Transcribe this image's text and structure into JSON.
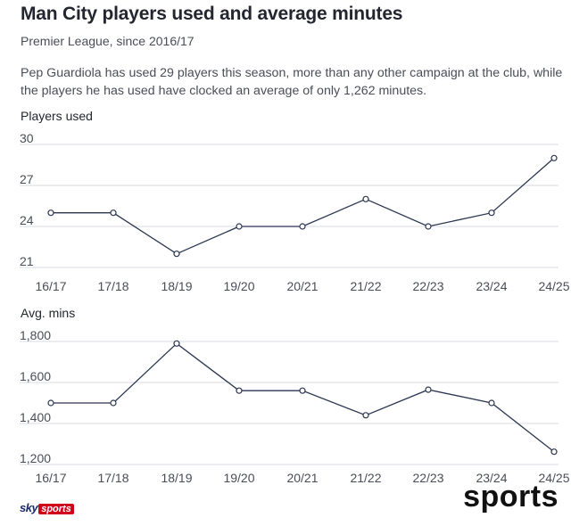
{
  "header": {
    "title": "Man City players used and average minutes",
    "subtitle": "Premier League, since 2016/17",
    "description": "Pep Guardiola has used 29 players this season, more than any other campaign at the club, while the players he has used have clocked an average of only 1,262 minutes."
  },
  "branding": {
    "sky": "sky",
    "sports_badge": "sports",
    "watermark": "sports"
  },
  "colors": {
    "line": "#2a3550",
    "badge": "#d0021b"
  },
  "chart_data": [
    {
      "type": "line",
      "title": "Players used",
      "categories": [
        "16/17",
        "17/18",
        "18/19",
        "19/20",
        "20/21",
        "21/22",
        "22/23",
        "23/24",
        "24/25"
      ],
      "series": [
        {
          "values": [
            25,
            25,
            22,
            24,
            24,
            26,
            24,
            25,
            29
          ]
        }
      ],
      "yticks": [
        "30",
        "27",
        "24",
        "21"
      ],
      "ylim": [
        21,
        30
      ],
      "grid": true,
      "legend": "none"
    },
    {
      "type": "line",
      "title": "Avg. mins",
      "categories": [
        "16/17",
        "17/18",
        "18/19",
        "19/20",
        "20/21",
        "21/22",
        "22/23",
        "23/24",
        "24/25"
      ],
      "series": [
        {
          "values": [
            1500,
            1500,
            1790,
            1560,
            1560,
            1440,
            1565,
            1500,
            1262
          ]
        }
      ],
      "yticks": [
        "1,800",
        "1,600",
        "1,400",
        "1,200"
      ],
      "ylim": [
        1200,
        1800
      ],
      "grid": true,
      "legend": "none"
    }
  ]
}
